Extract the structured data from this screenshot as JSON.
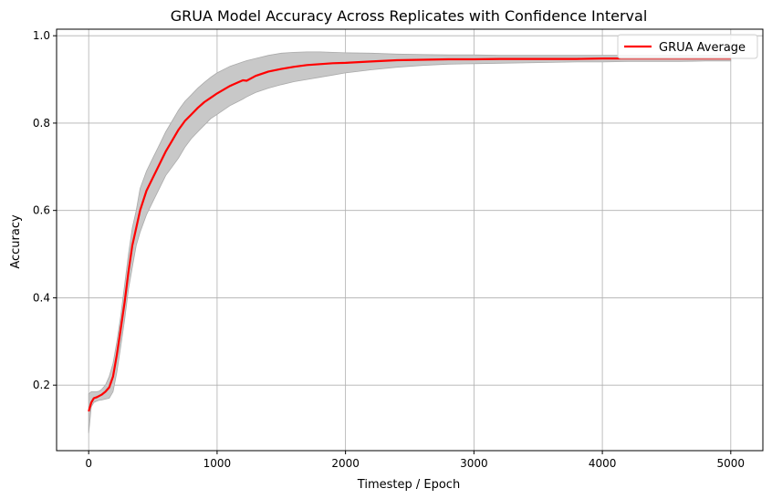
{
  "chart_data": {
    "type": "line",
    "title": "GRUA Model Accuracy Across Replicates with Confidence Interval",
    "xlabel": "Timestep / Epoch",
    "ylabel": "Accuracy",
    "xlim": [
      -250,
      5250
    ],
    "ylim": [
      0.05,
      1.015
    ],
    "xticks": [
      0,
      1000,
      2000,
      3000,
      4000,
      5000
    ],
    "yticks": [
      0.2,
      0.4,
      0.6,
      0.8,
      1.0
    ],
    "xtick_labels": [
      "0",
      "1000",
      "2000",
      "3000",
      "4000",
      "5000"
    ],
    "ytick_labels": [
      "0.2",
      "0.4",
      "0.6",
      "0.8",
      "1.0"
    ],
    "grid": true,
    "legend": {
      "placement": "top-right",
      "entries": [
        "GRUA Average"
      ]
    },
    "colors": {
      "line": "#ff0000",
      "band": "#c8c8c8",
      "band_edge": "#aaaaaa",
      "grid": "#b0b0b0"
    },
    "series": [
      {
        "name": "GRUA Average",
        "x": [
          0,
          20,
          40,
          60,
          80,
          100,
          130,
          160,
          190,
          220,
          250,
          280,
          310,
          340,
          370,
          400,
          450,
          500,
          550,
          600,
          650,
          700,
          750,
          800,
          850,
          900,
          950,
          1000,
          1100,
          1200,
          1230,
          1300,
          1400,
          1500,
          1600,
          1700,
          1800,
          1900,
          2000,
          2200,
          2400,
          2600,
          2800,
          3000,
          3200,
          3400,
          3600,
          3800,
          4000,
          4200,
          4400,
          4600,
          4800,
          5000
        ],
        "y": [
          0.14,
          0.16,
          0.17,
          0.172,
          0.175,
          0.178,
          0.185,
          0.195,
          0.22,
          0.27,
          0.33,
          0.39,
          0.46,
          0.52,
          0.56,
          0.6,
          0.645,
          0.675,
          0.705,
          0.735,
          0.76,
          0.785,
          0.805,
          0.82,
          0.835,
          0.848,
          0.858,
          0.868,
          0.885,
          0.898,
          0.897,
          0.908,
          0.918,
          0.924,
          0.929,
          0.933,
          0.935,
          0.937,
          0.938,
          0.941,
          0.944,
          0.945,
          0.946,
          0.946,
          0.947,
          0.947,
          0.947,
          0.947,
          0.948,
          0.948,
          0.948,
          0.948,
          0.948,
          0.948
        ],
        "lower": [
          0.09,
          0.15,
          0.16,
          0.163,
          0.165,
          0.166,
          0.168,
          0.17,
          0.185,
          0.23,
          0.29,
          0.35,
          0.42,
          0.47,
          0.52,
          0.55,
          0.59,
          0.62,
          0.65,
          0.68,
          0.7,
          0.72,
          0.745,
          0.765,
          0.78,
          0.795,
          0.81,
          0.82,
          0.84,
          0.855,
          0.86,
          0.87,
          0.88,
          0.888,
          0.895,
          0.9,
          0.905,
          0.91,
          0.915,
          0.922,
          0.928,
          0.932,
          0.935,
          0.936,
          0.937,
          0.938,
          0.939,
          0.94,
          0.94,
          0.941,
          0.941,
          0.941,
          0.942,
          0.942
        ],
        "upper": [
          0.18,
          0.185,
          0.185,
          0.185,
          0.186,
          0.19,
          0.2,
          0.22,
          0.25,
          0.3,
          0.36,
          0.43,
          0.5,
          0.56,
          0.6,
          0.65,
          0.69,
          0.72,
          0.75,
          0.78,
          0.805,
          0.83,
          0.85,
          0.865,
          0.88,
          0.893,
          0.905,
          0.915,
          0.93,
          0.94,
          0.943,
          0.948,
          0.955,
          0.96,
          0.962,
          0.963,
          0.963,
          0.962,
          0.961,
          0.96,
          0.958,
          0.957,
          0.956,
          0.956,
          0.955,
          0.955,
          0.955,
          0.955,
          0.955,
          0.955,
          0.955,
          0.955,
          0.955,
          0.955
        ]
      }
    ]
  }
}
